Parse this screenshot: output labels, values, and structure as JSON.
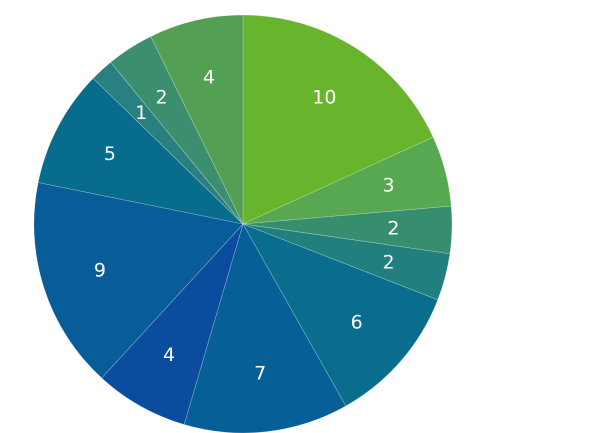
{
  "chart_data": {
    "type": "pie",
    "title": "",
    "start_angle_deg": 0,
    "direction": "clockwise",
    "legend": "none",
    "slices": [
      {
        "value": 10,
        "label": "10",
        "color": "#68b42d"
      },
      {
        "value": 3,
        "label": "3",
        "color": "#57a851"
      },
      {
        "value": 2,
        "label": "2",
        "color": "#378e6e"
      },
      {
        "value": 2,
        "label": "2",
        "color": "#217f7d"
      },
      {
        "value": 6,
        "label": "6",
        "color": "#0b6d8d"
      },
      {
        "value": 7,
        "label": "7",
        "color": "#075f98"
      },
      {
        "value": 4,
        "label": "4",
        "color": "#0a4d9e"
      },
      {
        "value": 9,
        "label": "9",
        "color": "#085c98"
      },
      {
        "value": 5,
        "label": "5",
        "color": "#086c8d"
      },
      {
        "value": 1,
        "label": "1",
        "color": "#2a7f80"
      },
      {
        "value": 2,
        "label": "2",
        "color": "#3c8f6e"
      },
      {
        "value": 4,
        "label": "4",
        "color": "#53a054"
      }
    ]
  }
}
